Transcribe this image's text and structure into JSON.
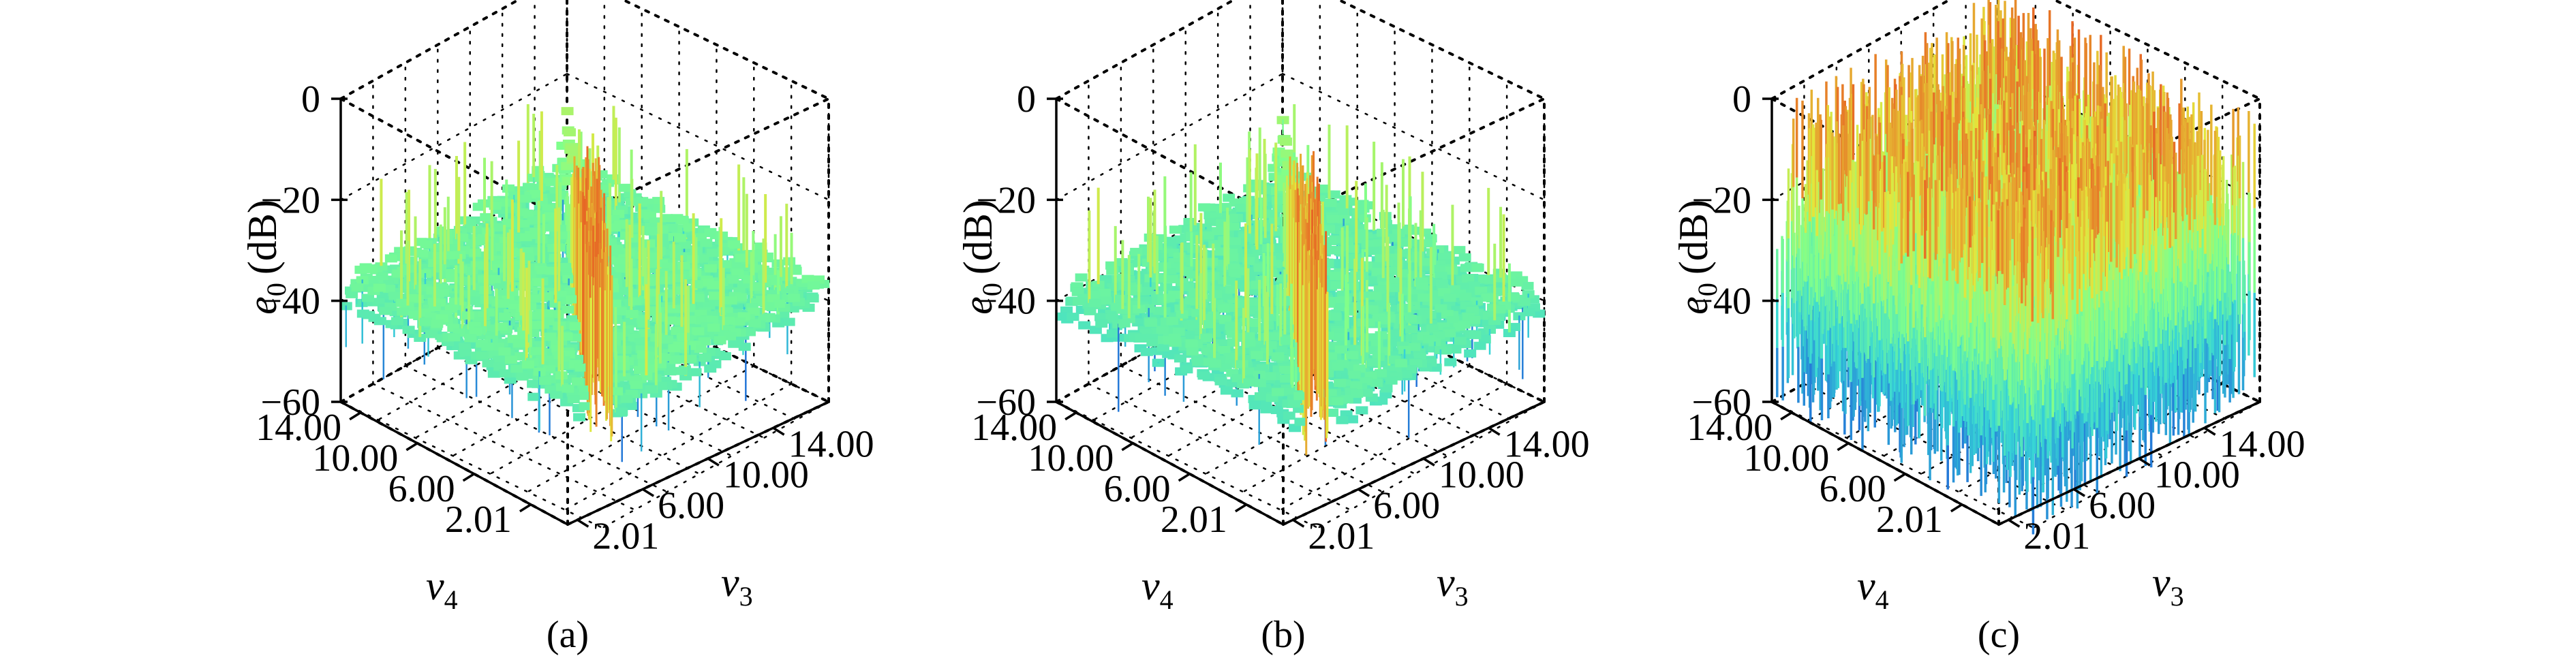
{
  "chart_data": [
    {
      "panel": "(a)",
      "type": "surface",
      "zlabel": "e",
      "zlabel_sub": "0",
      "zlabel_unit": "(dB)",
      "xlabel": "v",
      "xlabel_sub": "4",
      "ylabel": "v",
      "ylabel_sub": "3",
      "zlim": [
        -60,
        0
      ],
      "zticks": [
        "0",
        "−20",
        "−40",
        "−60"
      ],
      "xticks": [
        "14.00",
        "10.00",
        "6.00",
        "2.01"
      ],
      "yticks": [
        "2.01",
        "6.00",
        "10.00",
        "14.00"
      ],
      "baseline_db": -38,
      "peak_db": -5,
      "description_level": "ridge"
    },
    {
      "panel": "(b)",
      "type": "surface",
      "zlabel": "e",
      "zlabel_sub": "0",
      "zlabel_unit": "(dB)",
      "xlabel": "v",
      "xlabel_sub": "4",
      "ylabel": "v",
      "ylabel_sub": "3",
      "zlim": [
        -60,
        0
      ],
      "zticks": [
        "0",
        "−20",
        "−40",
        "−60"
      ],
      "xticks": [
        "14.00",
        "10.00",
        "6.00",
        "2.01"
      ],
      "yticks": [
        "2.01",
        "6.00",
        "10.00",
        "14.00"
      ],
      "baseline_db": -40,
      "peak_db": -5,
      "description_level": "ridge"
    },
    {
      "panel": "(c)",
      "type": "surface",
      "zlabel": "e",
      "zlabel_sub": "0",
      "zlabel_unit": "(dB)",
      "xlabel": "v",
      "xlabel_sub": "4",
      "ylabel": "v",
      "ylabel_sub": "3",
      "zlim": [
        -60,
        0
      ],
      "zticks": [
        "0",
        "−20",
        "−40",
        "−60"
      ],
      "xticks": [
        "14.00",
        "10.00",
        "6.00",
        "2.01"
      ],
      "yticks": [
        "2.01",
        "6.00",
        "10.00",
        "14.00"
      ],
      "baseline_db": -25,
      "peak_db": -2,
      "description_level": "noise"
    }
  ],
  "colors": {
    "low": "#1f5fd8",
    "mid_low": "#37d6d6",
    "mid": "#7fff8c",
    "mid_high": "#e5e53a",
    "high": "#e8241a"
  }
}
